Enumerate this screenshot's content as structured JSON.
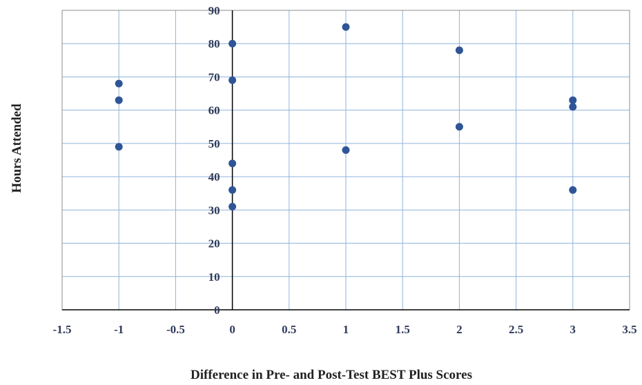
{
  "chart_data": {
    "type": "scatter",
    "title": "",
    "xlabel": "Difference in Pre- and Post-Test BEST Plus Scores",
    "ylabel": "Hours Attended",
    "xlim": [
      -1.5,
      3.5
    ],
    "ylim": [
      0,
      90
    ],
    "x_ticks": [
      -1.5,
      -1,
      -0.5,
      0,
      0.5,
      1,
      1.5,
      2,
      2.5,
      3,
      3.5
    ],
    "x_tick_labels": [
      "-1.5",
      "-1",
      "-0.5",
      "0",
      "0.5",
      "1",
      "1.5",
      "2",
      "2.5",
      "3",
      "3.5"
    ],
    "y_ticks": [
      0,
      10,
      20,
      30,
      40,
      50,
      60,
      70,
      80,
      90
    ],
    "y_tick_labels": [
      "0",
      "10",
      "20",
      "30",
      "40",
      "50",
      "60",
      "70",
      "80",
      "90"
    ],
    "grid": true,
    "legend": "none",
    "marker_color": "#2f5597",
    "grid_color": "#8fb2dc",
    "series": [
      {
        "points": [
          {
            "x": -1,
            "y": 68
          },
          {
            "x": -1,
            "y": 63
          },
          {
            "x": -1,
            "y": 49
          },
          {
            "x": 0,
            "y": 80
          },
          {
            "x": 0,
            "y": 69
          },
          {
            "x": 0,
            "y": 44
          },
          {
            "x": 0,
            "y": 36
          },
          {
            "x": 0,
            "y": 31
          },
          {
            "x": 1,
            "y": 85
          },
          {
            "x": 1,
            "y": 48
          },
          {
            "x": 2,
            "y": 78
          },
          {
            "x": 2,
            "y": 55
          },
          {
            "x": 3,
            "y": 63
          },
          {
            "x": 3,
            "y": 61
          },
          {
            "x": 3,
            "y": 36
          }
        ]
      }
    ]
  }
}
